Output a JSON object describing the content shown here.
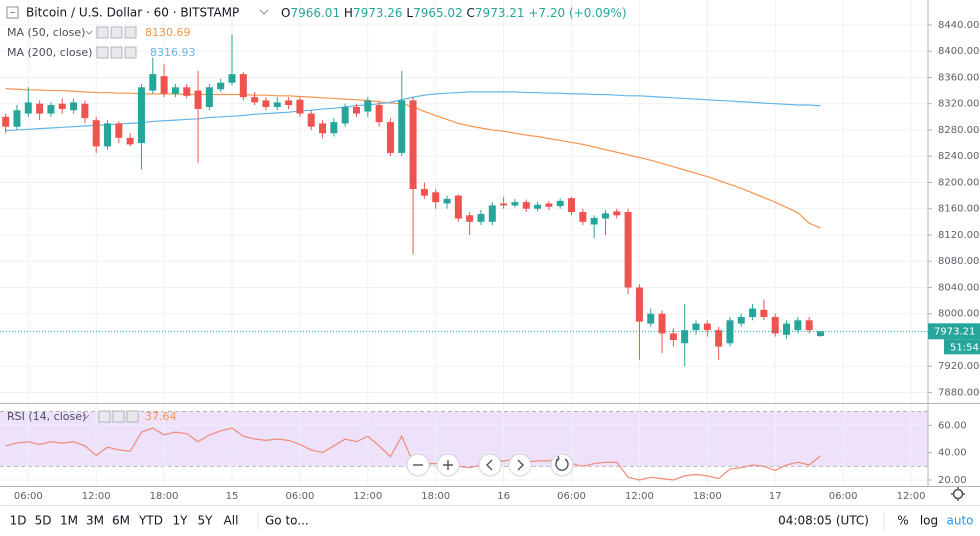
{
  "chart_data": [
    {
      "type": "candlestick",
      "title": "Bitcoin / U.S. Dollar · 60 · BITSTAMP",
      "ohlc_prefixes": [
        "O",
        "H",
        "L",
        "C"
      ],
      "change_label": "+7.20 (+0.09%)",
      "countdown": "51:54",
      "up_color": "#26a69a",
      "down_color": "#ef5350",
      "categories": [
        null,
        null,
        "06:00",
        null,
        null,
        null,
        null,
        null,
        "12:00",
        null,
        null,
        null,
        null,
        null,
        "18:00",
        null,
        null,
        null,
        null,
        null,
        "15",
        null,
        null,
        null,
        null,
        null,
        "06:00",
        null,
        null,
        null,
        null,
        null,
        "12:00",
        null,
        null,
        null,
        null,
        null,
        "18:00",
        null,
        null,
        null,
        null,
        null,
        "16",
        null,
        null,
        null,
        null,
        null,
        "06:00",
        null,
        null,
        null,
        null,
        null,
        "12:00",
        null,
        null,
        null,
        null,
        null,
        "18:00",
        null,
        null,
        null,
        null,
        null,
        "17",
        null,
        null,
        null,
        null,
        null,
        "06:00",
        null,
        null,
        null,
        null,
        null,
        "12:00",
        null
      ],
      "open": [
        8300,
        8285,
        8305,
        8320,
        8305,
        8320,
        8310,
        8320,
        8295,
        8255,
        8290,
        8268,
        8260,
        8340,
        8362,
        8335,
        8345,
        8340,
        8315,
        8342,
        8352,
        8365,
        8330,
        8325,
        8315,
        8325,
        8326,
        8305,
        8290,
        8275,
        8290,
        8315,
        8308,
        8318,
        8292,
        8245,
        8325,
        8190,
        8185,
        8168,
        8180,
        8150,
        8140,
        8140,
        8168,
        8165,
        8170,
        8160,
        8168,
        8164,
        8176,
        8155,
        8136,
        8145,
        8156,
        8155,
        8040,
        7985,
        8000,
        7970,
        7955,
        7975,
        7985,
        7975,
        7955,
        7985,
        7995,
        8006,
        7995,
        7968,
        7975,
        7990,
        7966.01,
        null,
        null,
        null,
        null,
        null,
        null,
        null,
        null,
        null
      ],
      "high": [
        8305,
        8318,
        8345,
        8325,
        8322,
        8328,
        8328,
        8325,
        8300,
        8295,
        8293,
        8275,
        8350,
        8390,
        8380,
        8350,
        8350,
        8370,
        8350,
        8358,
        8425,
        8368,
        8338,
        8330,
        8330,
        8330,
        8330,
        8310,
        8295,
        8298,
        8320,
        8320,
        8330,
        8322,
        8298,
        8370,
        8330,
        8200,
        8190,
        8180,
        8182,
        8155,
        8158,
        8170,
        8178,
        8175,
        8174,
        8170,
        8172,
        8176,
        8178,
        8160,
        8150,
        8158,
        8160,
        8160,
        8045,
        8008,
        8005,
        7978,
        8015,
        7990,
        7990,
        7980,
        7995,
        8000,
        8015,
        8022,
        8000,
        7990,
        7995,
        7995,
        7973.26,
        null,
        null,
        null,
        null,
        null,
        null,
        null,
        null,
        null
      ],
      "low": [
        8275,
        8280,
        8300,
        8295,
        8300,
        8305,
        8305,
        8290,
        8245,
        8250,
        8260,
        8255,
        8220,
        8335,
        8330,
        8330,
        8328,
        8230,
        8310,
        8338,
        8348,
        8325,
        8318,
        8310,
        8310,
        8312,
        8300,
        8280,
        8268,
        8270,
        8285,
        8300,
        8300,
        8285,
        8240,
        8240,
        8090,
        8175,
        8160,
        8160,
        8140,
        8120,
        8135,
        8135,
        8160,
        8162,
        8155,
        8156,
        8158,
        8160,
        8150,
        8135,
        8115,
        8120,
        8145,
        8030,
        7930,
        7980,
        7940,
        7950,
        7920,
        7968,
        7965,
        7930,
        7950,
        7980,
        7990,
        7990,
        7965,
        7962,
        7970,
        7970,
        7965.02,
        null,
        null,
        null,
        null,
        null,
        null,
        null,
        null,
        null
      ],
      "close": [
        8285,
        8310,
        8322,
        8305,
        8318,
        8312,
        8322,
        8298,
        8255,
        8290,
        8268,
        8258,
        8345,
        8365,
        8335,
        8345,
        8332,
        8312,
        8345,
        8352,
        8365,
        8330,
        8322,
        8315,
        8322,
        8318,
        8305,
        8285,
        8275,
        8292,
        8315,
        8305,
        8325,
        8292,
        8245,
        8325,
        8190,
        8180,
        8170,
        8175,
        8145,
        8140,
        8152,
        8165,
        8165,
        8170,
        8160,
        8166,
        8163,
        8172,
        8155,
        8140,
        8146,
        8153,
        8150,
        8040,
        7988,
        8000,
        7970,
        7960,
        7975,
        7985,
        7975,
        7950,
        7990,
        7995,
        8008,
        7995,
        7970,
        7985,
        7990,
        7975,
        7973.21,
        null,
        null,
        null,
        null,
        null,
        null,
        null,
        null,
        null
      ],
      "series": [
        {
          "name": "MA (50, close)",
          "color": "#f7954f",
          "values": [
            8343,
            8342,
            8341,
            8341,
            8340,
            8340,
            8339,
            8338,
            8337,
            8337,
            8336,
            8336,
            8335,
            8335,
            8335,
            8335,
            8334,
            8334,
            8334,
            8334,
            8334,
            8334,
            8333,
            8333,
            8332,
            8332,
            8331,
            8330,
            8329,
            8328,
            8327,
            8326,
            8325,
            8323,
            8321,
            8320,
            8315,
            8308,
            8302,
            8296,
            8290,
            8286,
            8283,
            8280,
            8278,
            8275,
            8272,
            8270,
            8267,
            8264,
            8261,
            8258,
            8254,
            8250,
            8246,
            8242,
            8238,
            8234,
            8229,
            8224,
            8219,
            8214,
            8209,
            8203,
            8197,
            8191,
            8184,
            8177,
            8170,
            8162,
            8154,
            8138,
            8130.69,
            null,
            null,
            null,
            null,
            null,
            null,
            null,
            null,
            null
          ]
        },
        {
          "name": "MA (200, close)",
          "color": "#64b5e8",
          "values": [
            8279,
            8280,
            8281,
            8282,
            8283,
            8284,
            8285,
            8286,
            8287,
            8288,
            8289,
            8290,
            8291,
            8293,
            8294,
            8295,
            8296,
            8297,
            8299,
            8300,
            8301,
            8302,
            8304,
            8305,
            8306,
            8307,
            8309,
            8310,
            8312,
            8313,
            8315,
            8317,
            8318,
            8320,
            8322,
            8326,
            8330,
            8333,
            8335,
            8336,
            8337,
            8338,
            8338,
            8338,
            8338,
            8338,
            8337,
            8337,
            8336,
            8336,
            8335,
            8335,
            8334,
            8334,
            8333,
            8332,
            8332,
            8331,
            8330,
            8329,
            8328,
            8327,
            8326,
            8325,
            8324,
            8323,
            8322,
            8321,
            8320,
            8319,
            8318,
            8318,
            8316.93,
            null,
            null,
            null,
            null,
            null,
            null,
            null,
            null,
            null
          ]
        }
      ],
      "ylim": [
        7864,
        8478
      ],
      "yticks": [
        {
          "value": 7880,
          "label": "7880.00"
        },
        {
          "value": 7920,
          "label": "7920.00"
        },
        {
          "value": 8000,
          "label": "8000.00"
        },
        {
          "value": 8040,
          "label": "8040.00"
        },
        {
          "value": 8080,
          "label": "8080.00"
        },
        {
          "value": 8120,
          "label": "8120.00"
        },
        {
          "value": 8160,
          "label": "8160.00"
        },
        {
          "value": 8200,
          "label": "8200.00"
        },
        {
          "value": 8240,
          "label": "8240.00"
        },
        {
          "value": 8280,
          "label": "8280.00"
        },
        {
          "value": 8320,
          "label": "8320.00"
        },
        {
          "value": 8360,
          "label": "8360.00"
        },
        {
          "value": 8400,
          "label": "8400.00"
        },
        {
          "value": 8440,
          "label": "8440.00"
        }
      ],
      "grid": true
    },
    {
      "type": "line",
      "series": [
        {
          "name": "RSI (14, close)",
          "color": "#f08a7a",
          "values": [
            45,
            47,
            48,
            46,
            48,
            47,
            48,
            45,
            38,
            44,
            42,
            41,
            55,
            58,
            53,
            55,
            54,
            48,
            53,
            56,
            58,
            52,
            50,
            49,
            50,
            49,
            46,
            42,
            40,
            45,
            50,
            48,
            52,
            45,
            37,
            52,
            33,
            32,
            32,
            33,
            30,
            29,
            31,
            34,
            34,
            35,
            33,
            34,
            34,
            36,
            32,
            30,
            32,
            33,
            33,
            22,
            20,
            22,
            21,
            20,
            23,
            24,
            23,
            21,
            28,
            29,
            31,
            30,
            27,
            31,
            33,
            31,
            37.64,
            null,
            null,
            null,
            null,
            null,
            null,
            null,
            null,
            null
          ]
        }
      ],
      "band": [
        30,
        70
      ],
      "band_color": "#ede1fb",
      "ylim": [
        15.6,
        75.6
      ],
      "yticks": [
        {
          "value": 20,
          "label": "20.00"
        },
        {
          "value": 40,
          "label": "40.00"
        },
        {
          "value": 60,
          "label": "60.00"
        }
      ],
      "grid": true
    }
  ],
  "toolbar": {
    "ranges": [
      "1D",
      "5D",
      "1M",
      "3M",
      "6M",
      "YTD",
      "1Y",
      "5Y",
      "All"
    ],
    "goto": "Go to...",
    "clock": "04:08:05 (UTC)",
    "percent": "%",
    "log": "log",
    "auto": "auto"
  }
}
